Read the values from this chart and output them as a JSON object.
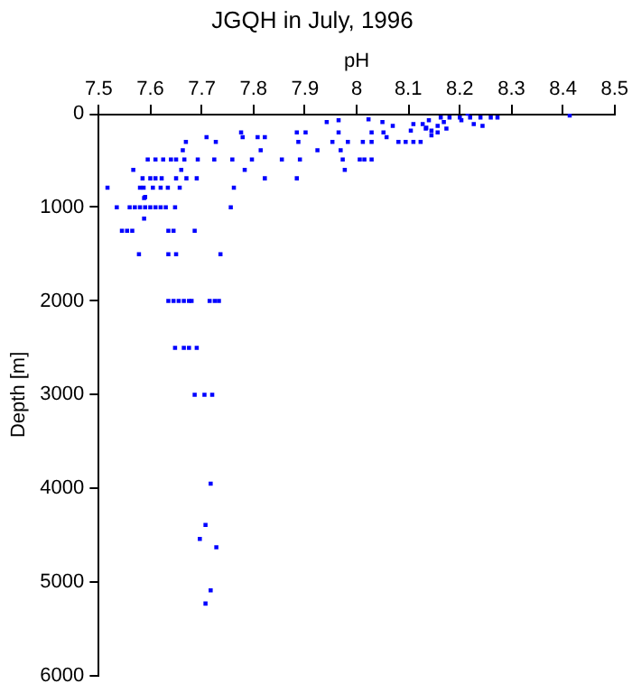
{
  "chart_data": {
    "type": "scatter",
    "title": "JGQH in July, 1996",
    "xlabel": "pH",
    "ylabel": "Depth [m]",
    "xlim": [
      7.5,
      8.5
    ],
    "xticks": [
      7.5,
      7.6,
      7.7,
      7.8,
      7.9,
      8,
      8.1,
      8.2,
      8.3,
      8.4,
      8.5
    ],
    "ylim": [
      6000,
      0
    ],
    "yticks": [
      0,
      1000,
      2000,
      3000,
      4000,
      5000,
      6000
    ],
    "grid": false,
    "legend": false,
    "marker": "square",
    "series": [
      {
        "color": "#0000ff",
        "x": [
          7.717,
          7.707,
          7.696,
          7.728,
          7.717,
          7.707,
          7.535,
          7.56,
          7.57,
          7.58,
          7.59,
          7.6,
          7.61,
          7.62,
          7.63,
          7.648,
          7.756,
          7.588,
          7.588,
          7.545,
          7.555,
          7.565,
          7.635,
          7.645,
          7.686,
          7.578,
          7.635,
          7.65,
          7.736,
          7.635,
          7.645,
          7.655,
          7.665,
          7.675,
          7.68,
          7.715,
          7.725,
          7.733,
          7.648,
          7.665,
          7.675,
          7.69,
          7.686,
          7.705,
          7.72,
          7.517,
          7.567,
          7.585,
          7.58,
          7.587,
          7.59,
          7.6,
          7.61,
          7.622,
          7.595,
          7.61,
          7.625,
          7.64,
          7.65,
          7.605,
          7.62,
          7.634,
          7.657,
          7.65,
          7.67,
          7.69,
          7.663,
          7.666,
          7.66,
          7.669,
          7.692,
          7.709,
          7.727,
          7.724,
          7.759,
          7.762,
          7.776,
          7.779,
          7.783,
          7.797,
          7.808,
          7.822,
          7.814,
          7.822,
          7.855,
          7.884,
          7.901,
          7.887,
          7.89,
          7.884,
          7.924,
          7.942,
          7.965,
          7.953,
          7.965,
          7.969,
          7.973,
          7.977,
          7.983,
          8.006,
          8.015,
          8.029,
          8.012,
          8.029,
          8.023,
          8.029,
          8.05,
          8.052,
          8.058,
          8.07,
          8.081,
          8.095,
          8.11,
          8.124,
          8.105,
          8.11,
          8.128,
          8.135,
          8.145,
          8.145,
          8.14,
          8.163,
          8.18,
          8.2,
          8.22,
          8.24,
          8.26,
          8.273,
          8.169,
          8.203,
          8.227,
          8.244,
          8.157,
          8.174,
          8.413,
          8.215,
          8.134,
          8.157
        ],
        "values": [
          3950,
          4390,
          4540,
          4630,
          5090,
          5230,
          1000,
          1000,
          1000,
          1000,
          1000,
          1000,
          1000,
          1000,
          1000,
          1000,
          1000,
          900,
          1120,
          1250,
          1250,
          1250,
          1250,
          1250,
          1250,
          1500,
          1500,
          1500,
          1500,
          2000,
          2000,
          2000,
          2000,
          2000,
          2000,
          2000,
          2000,
          2000,
          2500,
          2500,
          2500,
          2500,
          3000,
          3000,
          3000,
          790,
          600,
          690,
          790,
          790,
          890,
          690,
          690,
          690,
          490,
          490,
          490,
          490,
          490,
          790,
          790,
          790,
          790,
          690,
          690,
          690,
          390,
          490,
          600,
          300,
          490,
          250,
          300,
          490,
          490,
          790,
          200,
          250,
          600,
          490,
          250,
          250,
          390,
          690,
          490,
          200,
          200,
          300,
          490,
          690,
          390,
          90,
          70,
          300,
          200,
          390,
          490,
          600,
          300,
          490,
          490,
          490,
          300,
          300,
          60,
          200,
          90,
          200,
          250,
          130,
          300,
          300,
          300,
          300,
          180,
          110,
          110,
          150,
          180,
          230,
          70,
          40,
          40,
          40,
          40,
          40,
          40,
          40,
          90,
          70,
          110,
          130,
          130,
          160,
          20,
          0,
          160,
          200
        ]
      }
    ]
  }
}
